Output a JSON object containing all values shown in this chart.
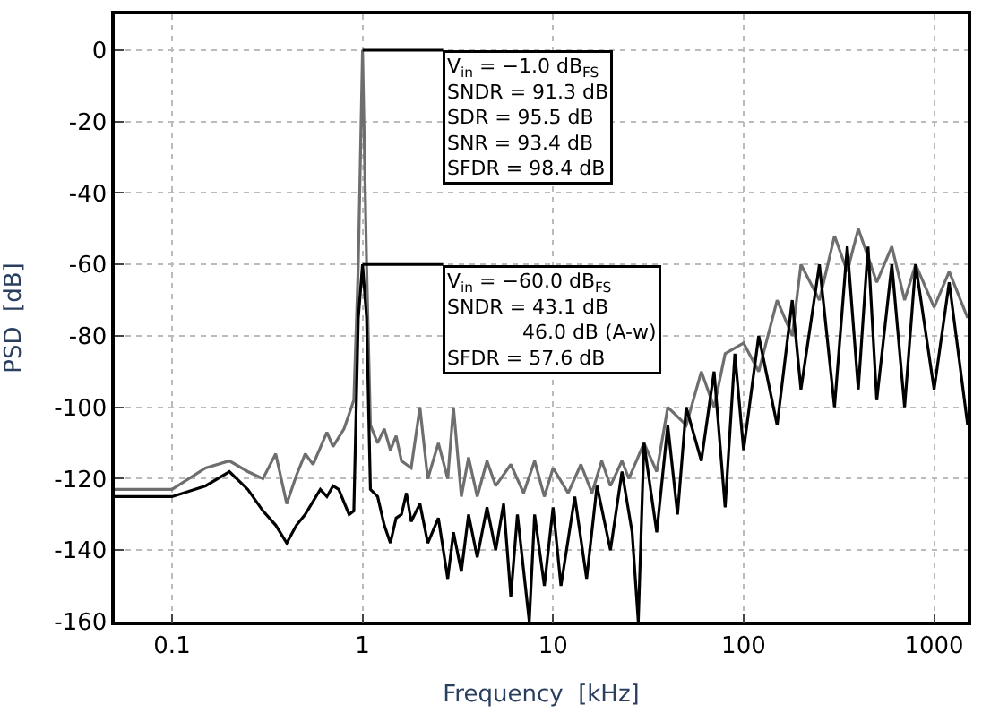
{
  "chart_data": {
    "type": "line",
    "xlabel": "Frequency  [kHz]",
    "ylabel": "PSD  [dB]",
    "log": "x",
    "grid": true,
    "legend": false,
    "marker": "none",
    "line_style": "solid",
    "xlim": [
      0.05,
      1500
    ],
    "xticks": [
      0.1,
      1,
      10,
      100,
      1000
    ],
    "ylim": [
      -160,
      10
    ],
    "yticks": [
      0,
      -20,
      -40,
      -60,
      -80,
      -100,
      -120,
      -140,
      -160
    ],
    "series": [
      {
        "color": "#6e6e6e",
        "x": [
          0.05,
          0.1,
          0.15,
          0.2,
          0.25,
          0.3,
          0.35,
          0.4,
          0.45,
          0.5,
          0.55,
          0.65,
          0.7,
          0.8,
          0.9,
          0.95,
          1.0,
          1.05,
          1.1,
          1.2,
          1.3,
          1.4,
          1.5,
          1.6,
          1.8,
          2.0,
          2.2,
          2.5,
          2.8,
          3.0,
          3.3,
          3.6,
          4,
          4.5,
          5,
          6,
          7,
          8,
          9,
          10,
          12,
          14,
          16,
          18,
          20,
          23,
          25,
          30,
          35,
          40,
          50,
          60,
          70,
          80,
          100,
          120,
          150,
          180,
          200,
          250,
          300,
          350,
          400,
          500,
          600,
          700,
          800,
          1000,
          1200,
          1500
        ],
        "values": [
          -123,
          -123,
          -117,
          -115,
          -118,
          -120,
          -113,
          -127,
          -119,
          -113,
          -116,
          -107,
          -111,
          -106,
          -98,
          -60,
          0,
          -60,
          -105,
          -110,
          -106,
          -112,
          -108,
          -115,
          -117,
          -100,
          -120,
          -110,
          -120,
          -100,
          -125,
          -114,
          -125,
          -115,
          -122,
          -116,
          -124,
          -115,
          -125,
          -117,
          -124,
          -116,
          -124,
          -115,
          -122,
          -115,
          -120,
          -110,
          -118,
          -100,
          -105,
          -90,
          -100,
          -85,
          -82,
          -90,
          -70,
          -80,
          -60,
          -70,
          -52,
          -62,
          -50,
          -65,
          -55,
          -70,
          -60,
          -72,
          -62,
          -75
        ]
      },
      {
        "color": "#000000",
        "x": [
          0.05,
          0.1,
          0.15,
          0.2,
          0.25,
          0.3,
          0.35,
          0.4,
          0.45,
          0.5,
          0.6,
          0.65,
          0.7,
          0.75,
          0.85,
          0.9,
          0.95,
          1.0,
          1.05,
          1.1,
          1.2,
          1.3,
          1.4,
          1.5,
          1.6,
          1.7,
          1.8,
          2.0,
          2.2,
          2.5,
          2.8,
          3.0,
          3.3,
          3.6,
          4,
          4.5,
          5,
          5.5,
          6,
          6.5,
          7.5,
          8,
          9,
          10,
          11,
          13,
          15,
          17,
          20,
          23,
          26,
          28,
          30,
          35,
          40,
          45,
          50,
          60,
          70,
          80,
          90,
          100,
          120,
          150,
          180,
          200,
          250,
          300,
          350,
          400,
          450,
          500,
          600,
          700,
          800,
          1000,
          1200,
          1500
        ],
        "values": [
          -125,
          -125,
          -122,
          -118,
          -123,
          -129,
          -133,
          -138,
          -133,
          -130,
          -123,
          -125,
          -122,
          -123,
          -130,
          -129,
          -75,
          -60,
          -75,
          -123,
          -125,
          -133,
          -138,
          -131,
          -130,
          -124,
          -132,
          -127,
          -138,
          -131,
          -148,
          -135,
          -146,
          -130,
          -142,
          -128,
          -140,
          -127,
          -153,
          -130,
          -160,
          -130,
          -150,
          -128,
          -150,
          -125,
          -148,
          -122,
          -140,
          -118,
          -135,
          -160,
          -110,
          -135,
          -105,
          -130,
          -100,
          -115,
          -90,
          -128,
          -85,
          -112,
          -80,
          -105,
          -70,
          -95,
          -60,
          -100,
          -55,
          -95,
          -55,
          -98,
          -60,
          -100,
          -60,
          -95,
          -65,
          -105
        ]
      }
    ],
    "annotations": [
      {
        "text": "V$_{in}$ = −1.0 dB$_{FS}$\nSNDR = 91.3 dB\nSDR = 95.5 dB\nSNR = 93.4 dB\nSFDR = 98.4 dB",
        "x": 1,
        "y": 0
      },
      {
        "text": "V$_{in}$ = −60.0 dB$_{FS}$\nSNDR = 43.1 dB\n            46.0 dB (A-w)\nSFDR = 57.6 dB",
        "x": 1,
        "y": -60
      }
    ]
  }
}
